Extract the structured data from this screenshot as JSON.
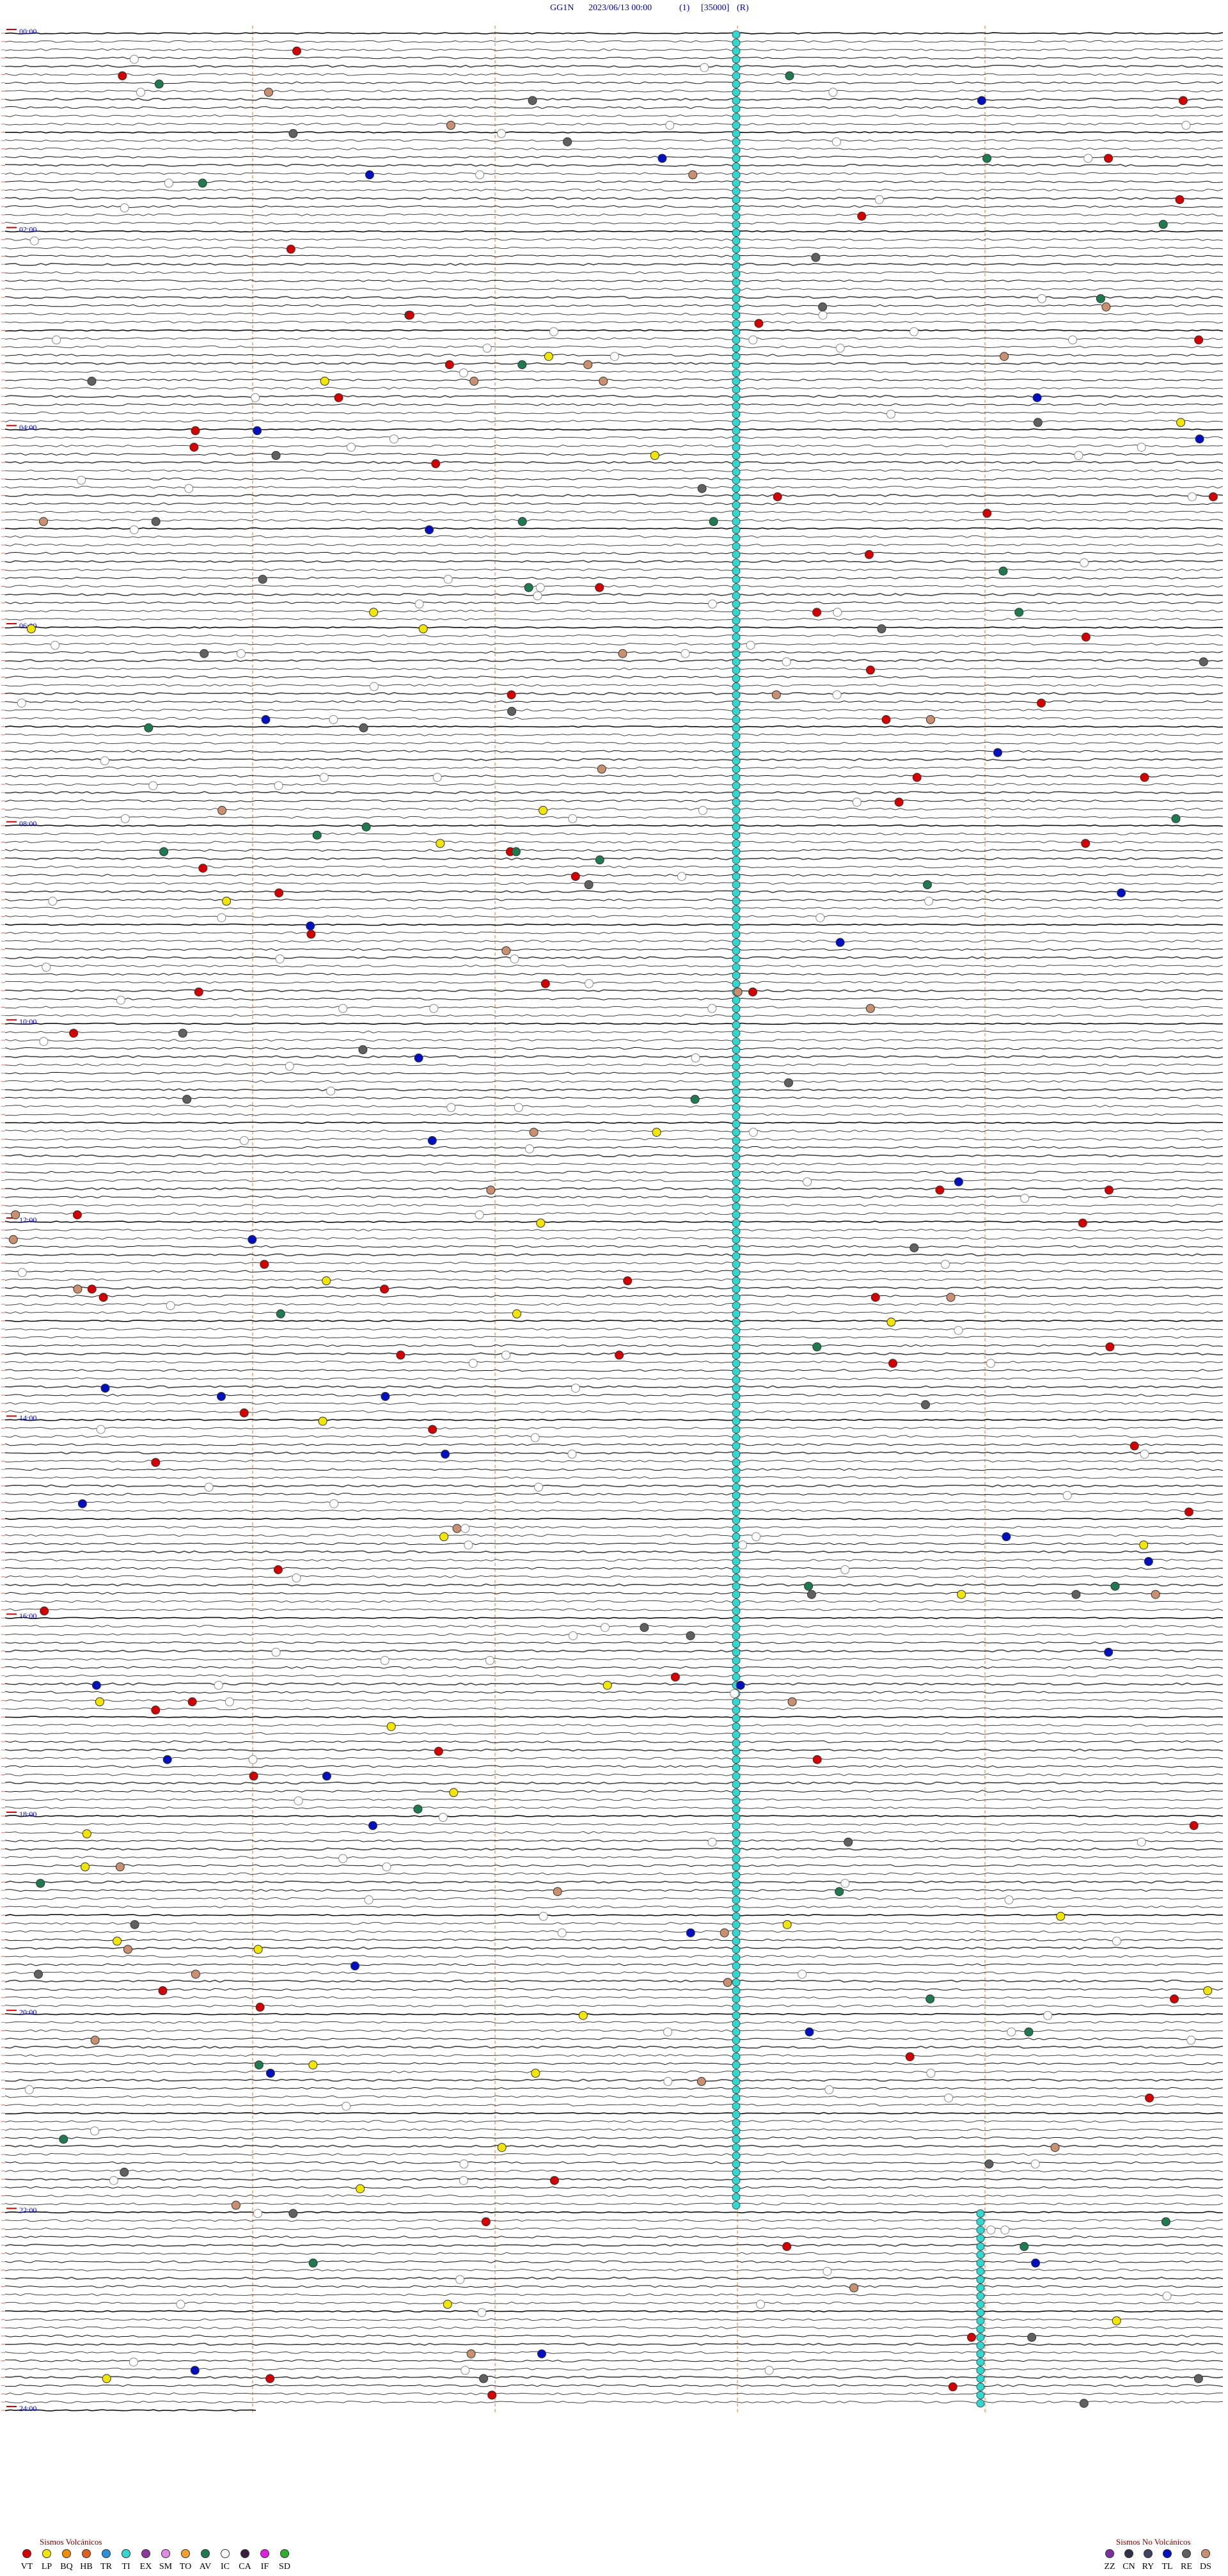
{
  "header": {
    "station": "GG1N",
    "datetime": "2023/06/13 00:00",
    "channel": "(1)",
    "scale": "[35000]",
    "mode": "(R)"
  },
  "hour_labels": [
    "00:00",
    "02:00",
    "04:00",
    "06:00",
    "08:00",
    "10:00",
    "12:00",
    "14:00",
    "16:00",
    "18:00",
    "20:00",
    "22:00",
    "24:00"
  ],
  "legend": {
    "volcanic": {
      "title": "Sismos Volcánicos",
      "items": [
        {
          "code": "VT",
          "color": "#d40000"
        },
        {
          "code": "LP",
          "color": "#f2e600"
        },
        {
          "code": "BQ",
          "color": "#f08c00"
        },
        {
          "code": "HB",
          "color": "#e06020"
        },
        {
          "code": "TR",
          "color": "#2f8fd8"
        },
        {
          "code": "TI",
          "color": "#30d8d0"
        },
        {
          "code": "EX",
          "color": "#8a3a9a"
        },
        {
          "code": "SM",
          "color": "#e08ae0"
        },
        {
          "code": "TO",
          "color": "#f0a030"
        },
        {
          "code": "AV",
          "color": "#1f7a50"
        },
        {
          "code": "IC",
          "color": "#ffffff"
        },
        {
          "code": "CA",
          "color": "#3a2040"
        },
        {
          "code": "IF",
          "color": "#e020e0"
        },
        {
          "code": "SD",
          "color": "#30b030"
        }
      ]
    },
    "non_volcanic": {
      "title": "Sismos No Volcánicos",
      "items": [
        {
          "code": "ZZ",
          "color": "#7a30a0"
        },
        {
          "code": "CN",
          "color": "#30304a"
        },
        {
          "code": "RY",
          "color": "#404060"
        },
        {
          "code": "TL",
          "color": "#0010c0"
        },
        {
          "code": "RE",
          "color": "#606060"
        },
        {
          "code": "DS",
          "color": "#c89070"
        }
      ]
    }
  }
}
